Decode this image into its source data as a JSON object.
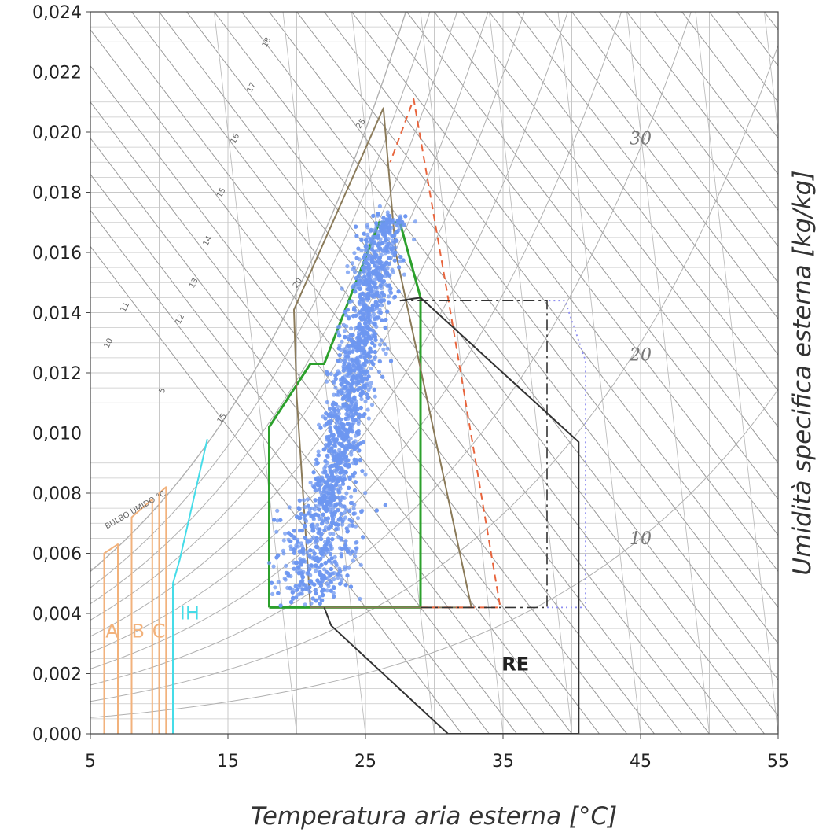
{
  "chart_data": {
    "type": "scatter",
    "subtype": "psychrometric chart with bioclimatic comfort zones",
    "title": "",
    "xlabel": "Temperatura aria esterna [°C]",
    "ylabel": "Umidità specifica esterna [kg/kg]",
    "xlim": [
      5,
      55
    ],
    "ylim": [
      0,
      0.024
    ],
    "xticks": [
      "5",
      "15",
      "25",
      "35",
      "45",
      "55"
    ],
    "yticks": [
      "0,000",
      "0,002",
      "0,004",
      "0,006",
      "0,008",
      "0,010",
      "0,012",
      "0,014",
      "0,016",
      "0,018",
      "0,020",
      "0,022",
      "0,024"
    ],
    "grid": true,
    "relative_humidity_labels": [
      "10",
      "20",
      "30"
    ],
    "wet_bulb_axis": {
      "label": "BULBO UMIDO °C",
      "ticks": [
        "5",
        "10",
        "11",
        "12",
        "13",
        "14",
        "15",
        "16",
        "17",
        "18"
      ]
    },
    "wet_bulb_line_labels": [
      "15",
      "20",
      "25"
    ],
    "zone_labels": [
      "A",
      "B",
      "C",
      "IH",
      "RE"
    ],
    "colors": {
      "scatter": "#6d97f0",
      "comfort_zone": "#2ca02c",
      "zone_olive": "#8b7b5a",
      "zone_orange": "#e8643c",
      "zone_dashdot": "#333333",
      "zone_dotted": "#8f8ff0",
      "zone_RE": "#333333",
      "zones_ABC": "#f2b27c",
      "zone_IH": "#45dce8",
      "grid": "#c8c8c8",
      "rh_curves": "#b0b0b0"
    },
    "zones": [
      {
        "name": "A",
        "style": "solid",
        "points": [
          [
            6,
            0
          ],
          [
            6,
            0.006
          ],
          [
            7,
            0.0063
          ],
          [
            7,
            0
          ]
        ]
      },
      {
        "name": "B",
        "style": "solid",
        "points": [
          [
            8,
            0
          ],
          [
            8,
            0.0072
          ],
          [
            9.5,
            0.0078
          ],
          [
            9.5,
            0
          ]
        ]
      },
      {
        "name": "C",
        "style": "solid",
        "points": [
          [
            10,
            0
          ],
          [
            10,
            0.008
          ],
          [
            10.5,
            0.0082
          ],
          [
            10.5,
            0
          ]
        ]
      },
      {
        "name": "IH",
        "style": "solid",
        "points": [
          [
            11,
            0
          ],
          [
            11,
            0.005
          ],
          [
            11.5,
            0.0058
          ],
          [
            13.5,
            0.0098
          ]
        ]
      },
      {
        "name": "comfort",
        "style": "solid",
        "points": [
          [
            18,
            0.0042
          ],
          [
            18,
            0.0102
          ],
          [
            21,
            0.0123
          ],
          [
            22,
            0.0123
          ],
          [
            26,
            0.017
          ],
          [
            27.5,
            0.017
          ],
          [
            29,
            0.0145
          ],
          [
            29,
            0.0042
          ],
          [
            18,
            0.0042
          ]
        ]
      },
      {
        "name": "olive",
        "style": "solid",
        "points": [
          [
            21,
            0.0042
          ],
          [
            20,
            0.0112
          ],
          [
            19.8,
            0.0141
          ],
          [
            26.3,
            0.0208
          ],
          [
            27.2,
            0.016
          ],
          [
            32.7,
            0.0042
          ],
          [
            21,
            0.0042
          ]
        ]
      },
      {
        "name": "orange",
        "style": "dashed",
        "points": [
          [
            29,
            0.0042
          ],
          [
            34.8,
            0.0042
          ],
          [
            31,
            0.0145
          ],
          [
            28.5,
            0.0211
          ],
          [
            26.8,
            0.019
          ]
        ]
      },
      {
        "name": "dashdot",
        "style": "dashdot",
        "points": [
          [
            29,
            0.0042
          ],
          [
            38.2,
            0.0042
          ],
          [
            38.2,
            0.0144
          ],
          [
            27.5,
            0.0144
          ]
        ]
      },
      {
        "name": "dotted",
        "style": "dotted",
        "points": [
          [
            38.2,
            0.0042
          ],
          [
            41,
            0.0042
          ],
          [
            41,
            0.0124
          ],
          [
            39.5,
            0.0144
          ],
          [
            38.2,
            0.0144
          ]
        ]
      },
      {
        "name": "RE",
        "style": "solid",
        "points": [
          [
            27.5,
            0.0144
          ],
          [
            29,
            0.0145
          ],
          [
            40.5,
            0.0097
          ],
          [
            40.5,
            0
          ],
          [
            31,
            0
          ],
          [
            22.5,
            0.0036
          ],
          [
            22,
            0.0042
          ]
        ]
      }
    ],
    "scatter_cluster": {
      "n_points": 3000,
      "center_line": [
        [
          21,
          0.0045
        ],
        [
          26.5,
          0.0172
        ]
      ],
      "x_spread": 1.5,
      "x_min": 18,
      "x_max": 29
    }
  }
}
